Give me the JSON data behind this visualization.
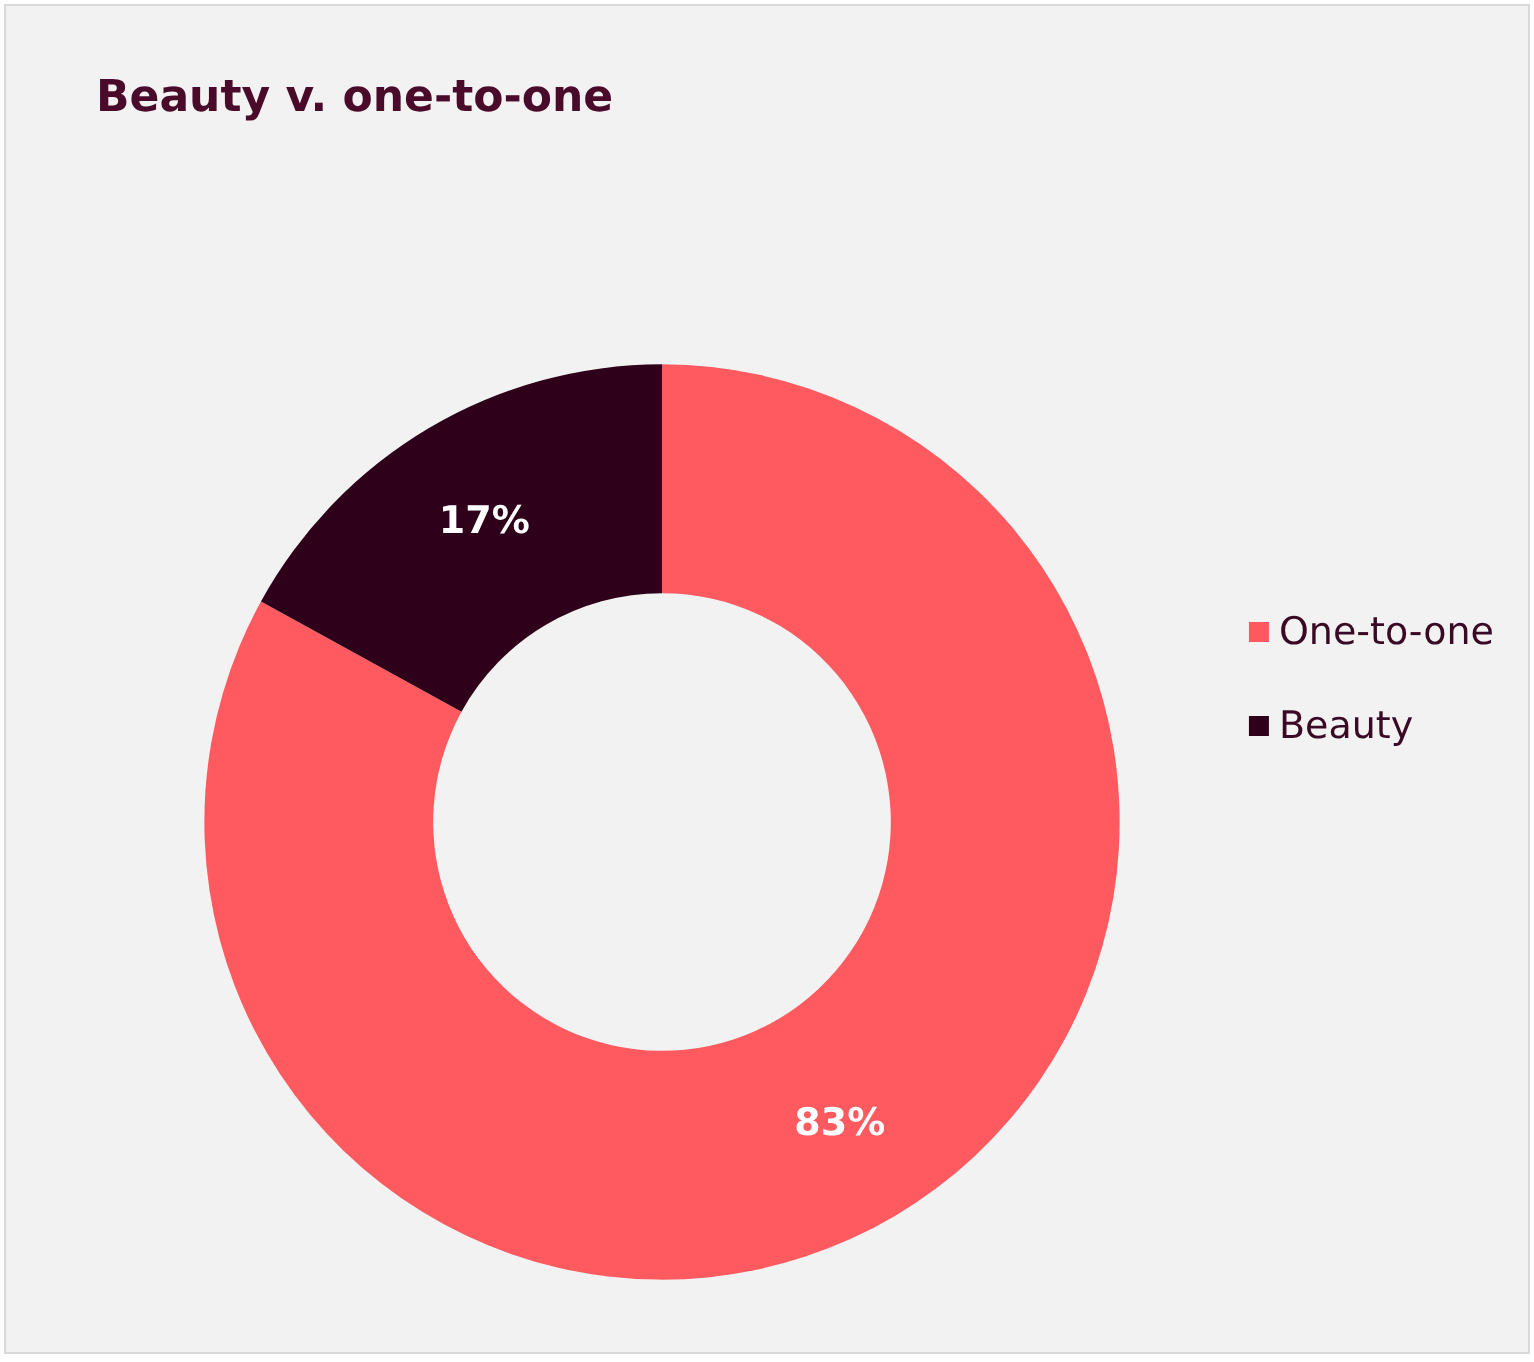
{
  "chart_data": {
    "type": "donut",
    "title": "Beauty v. one-to-one",
    "categories": [
      "One-to-one",
      "Beauty"
    ],
    "values": [
      83,
      17
    ],
    "colors": [
      "#ff5a5f",
      "#2e0019"
    ],
    "value_labels": [
      "83%",
      "17%"
    ],
    "legend": "right"
  }
}
